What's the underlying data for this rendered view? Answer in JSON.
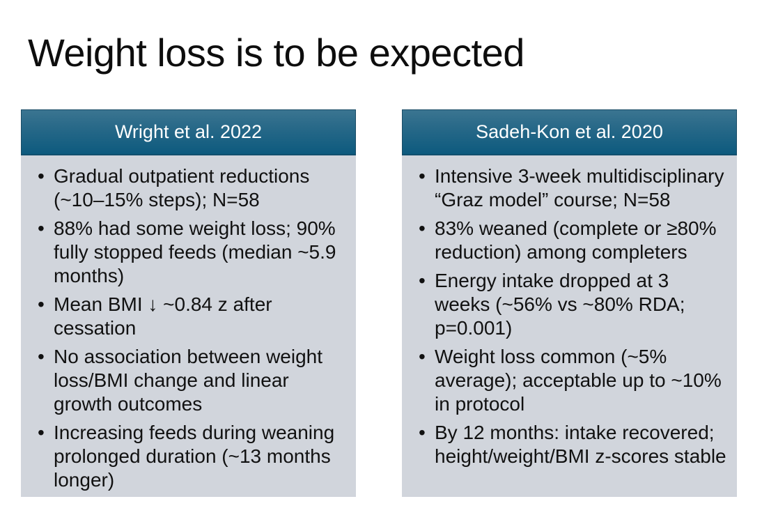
{
  "slide": {
    "title": "Weight loss is to be expected",
    "bullet_char": "•"
  },
  "colors": {
    "background": "#ffffff",
    "title_text": "#0d0d0d",
    "header_gradient_top": "#3b7591",
    "header_gradient_bottom": "#0d5a7e",
    "header_border": "#1a4c66",
    "header_text": "#ffffff",
    "panel_body_bg": "#d1d5dc",
    "body_text": "#111111"
  },
  "panels": [
    {
      "header": "Wright et al. 2022",
      "bullets": [
        "Gradual outpatient reductions (~10–15% steps); N=58",
        "88% had some weight loss; 90% fully stopped feeds (median ~5.9 months)",
        "Mean BMI ↓ ~0.84 z after cessation",
        "No association between weight loss/BMI change and linear growth outcomes",
        "Increasing feeds during weaning prolonged duration (~13 months longer)"
      ]
    },
    {
      "header": "Sadeh-Kon et al. 2020",
      "bullets": [
        "Intensive 3-week multidisciplinary “Graz model” course; N=58",
        "83% weaned (complete or ≥80% reduction) among completers",
        "Energy intake dropped at 3 weeks (~56% vs ~80% RDA; p=0.001)",
        "Weight loss common (~5% average); acceptable up to ~10% in protocol",
        "By 12 months: intake recovered; height/weight/BMI z-scores stable"
      ]
    }
  ]
}
